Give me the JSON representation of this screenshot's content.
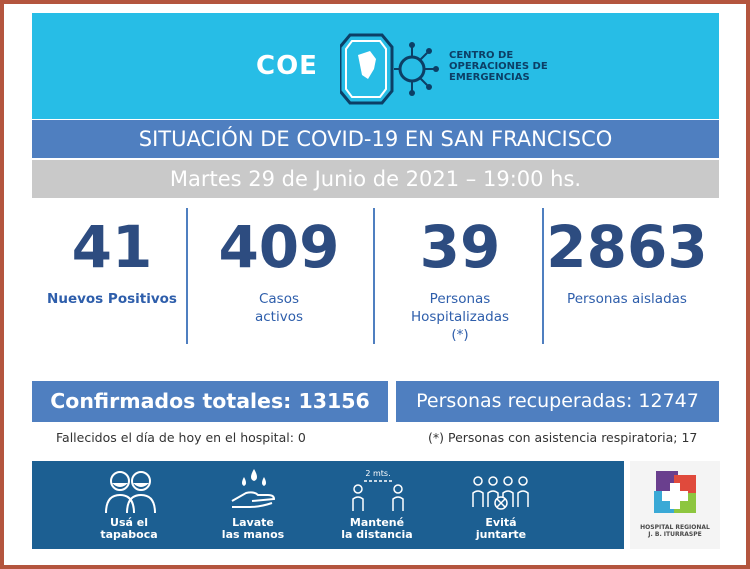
{
  "header": {
    "logo_text": "COE",
    "org_line1": "CENTRO DE",
    "org_line2": "OPERACIONES DE",
    "org_line3": "EMERGENCIAS",
    "background_color": "#27bde6"
  },
  "title": "SITUACIÓN DE COVID-19 EN SAN FRANCISCO",
  "date": "Martes 29 de Junio de 2021 – 19:00 hs.",
  "stats": [
    {
      "value": "41",
      "label_line1": "Nuevos Positivos",
      "label_line2": "",
      "label_line3": ""
    },
    {
      "value": "409",
      "label_line1": "Casos",
      "label_line2": "activos",
      "label_line3": ""
    },
    {
      "value": "39",
      "label_line1": "Personas",
      "label_line2": "Hospitalizadas",
      "label_line3": "(*)"
    },
    {
      "value": "2863",
      "label_line1": "Personas aisladas",
      "label_line2": "",
      "label_line3": ""
    }
  ],
  "totals": {
    "confirmed": "Confirmados totales: 13156",
    "recovered": "Personas recuperadas: 12747"
  },
  "notes": {
    "deceased": "Fallecidos el día de hoy en el hospital:  0",
    "respiratory": "(*) Personas con asistencia respiratoria; 17"
  },
  "tips": [
    {
      "icon": "face-mask-icon",
      "line1": "Usá el",
      "line2": "tapaboca"
    },
    {
      "icon": "hand-wash-icon",
      "line1": "Lavate",
      "line2": "las manos"
    },
    {
      "icon": "distance-icon",
      "distance_label": "2 mts.",
      "line1": "Mantené",
      "line2": "la distancia"
    },
    {
      "icon": "no-crowd-icon",
      "line1": "Evitá",
      "line2": "juntarte"
    }
  ],
  "hospital": {
    "line1": "HOSPITAL REGIONAL",
    "line2": "J. B. ITURRASPE"
  },
  "colors": {
    "accent_blue": "#4f7fc0",
    "number_navy": "#2d4c80",
    "date_gray": "#c9c9c9",
    "footer_blue": "#1c5f92",
    "frame": "#b4553e"
  }
}
